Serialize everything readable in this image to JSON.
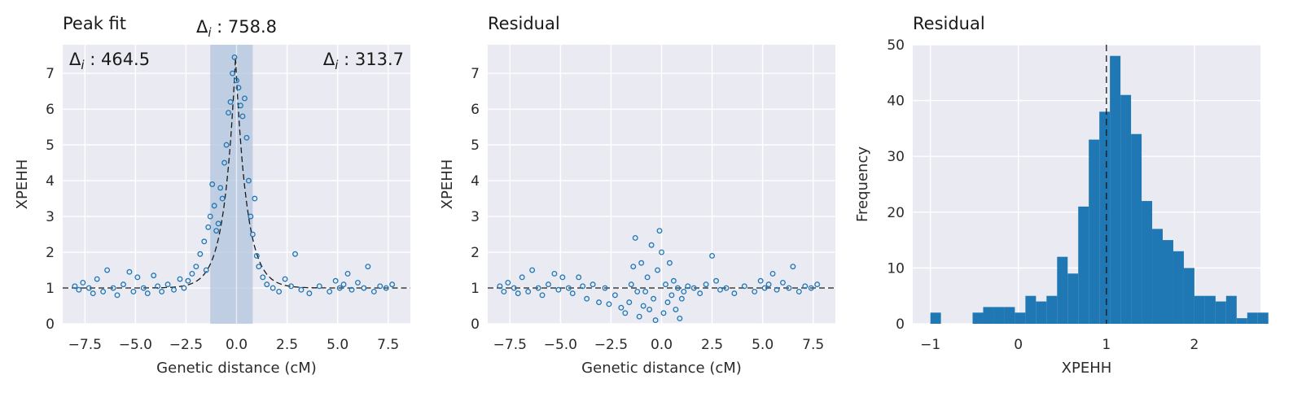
{
  "colors": {
    "background": "#eaeaf2",
    "grid": "#ffffff",
    "marker": "#1f77b4",
    "bar": "#1f77b4",
    "shade": "#b0c4de",
    "line": "#1a1a1a"
  },
  "panels": [
    {
      "title": "Peak fit",
      "xlabel": "Genetic distance (cM)",
      "ylabel": "XPEHH",
      "x_ticks": [
        "−7.5",
        "−5.0",
        "−2.5",
        "0.0",
        "2.5",
        "5.0",
        "7.5"
      ],
      "y_ticks": [
        "0",
        "1",
        "2",
        "3",
        "4",
        "5",
        "6",
        "7"
      ],
      "annotations": {
        "center": "Δ_i : 758.8",
        "left": "Δ_i : 464.5",
        "right": "Δ_i : 313.7"
      }
    },
    {
      "title": "Residual",
      "xlabel": "Genetic distance (cM)",
      "ylabel": "XPEHH",
      "x_ticks": [
        "−7.5",
        "−5.0",
        "−2.5",
        "0.0",
        "2.5",
        "5.0",
        "7.5"
      ],
      "y_ticks": [
        "0",
        "1",
        "2",
        "3",
        "4",
        "5",
        "6",
        "7"
      ]
    },
    {
      "title": "Residual",
      "xlabel": "XPEHH",
      "ylabel": "Frequency",
      "x_ticks": [
        "−1",
        "0",
        "1",
        "2"
      ],
      "y_ticks": [
        "0",
        "10",
        "20",
        "30",
        "40",
        "50"
      ]
    }
  ],
  "chart_data": [
    {
      "type": "scatter",
      "title": "Peak fit",
      "xlabel": "Genetic distance (cM)",
      "ylabel": "XPEHH",
      "xlim": [
        -8.6,
        8.6
      ],
      "ylim": [
        0,
        7.8
      ],
      "grid": true,
      "shaded_region": [
        -1.3,
        0.8
      ],
      "shaded_divider": 0.0,
      "fit_curve": {
        "style": "dashed",
        "peak_x": -0.05,
        "peak_y": 7.45,
        "baseline": 1.0,
        "width": 0.55
      },
      "series": {
        "x": [
          -8.0,
          -7.8,
          -7.6,
          -7.3,
          -7.1,
          -6.9,
          -6.6,
          -6.4,
          -6.1,
          -5.9,
          -5.6,
          -5.3,
          -5.1,
          -4.9,
          -4.6,
          -4.4,
          -4.1,
          -3.9,
          -3.7,
          -3.4,
          -3.1,
          -2.8,
          -2.6,
          -2.4,
          -2.2,
          -2.0,
          -1.8,
          -1.6,
          -1.5,
          -1.4,
          -1.3,
          -1.2,
          -1.1,
          -1.0,
          -0.9,
          -0.8,
          -0.7,
          -0.6,
          -0.5,
          -0.4,
          -0.3,
          -0.2,
          -0.1,
          0.0,
          0.1,
          0.2,
          0.3,
          0.4,
          0.5,
          0.6,
          0.7,
          0.8,
          0.9,
          1.0,
          1.1,
          1.3,
          1.5,
          1.8,
          2.1,
          2.4,
          2.7,
          2.9,
          3.2,
          3.6,
          4.1,
          4.6,
          4.9,
          5.1,
          5.3,
          5.5,
          5.7,
          6.0,
          6.3,
          6.5,
          6.8,
          7.1,
          7.4,
          7.7
        ],
        "y": [
          1.05,
          0.95,
          1.15,
          1.0,
          0.85,
          1.25,
          0.9,
          1.5,
          1.0,
          0.8,
          1.1,
          1.45,
          0.9,
          1.3,
          1.0,
          0.85,
          1.35,
          1.05,
          0.9,
          1.1,
          0.95,
          1.25,
          1.0,
          1.2,
          1.4,
          1.6,
          1.95,
          2.3,
          1.5,
          2.7,
          3.0,
          3.9,
          3.3,
          2.6,
          2.8,
          3.8,
          3.5,
          4.5,
          5.0,
          5.9,
          6.2,
          7.0,
          7.45,
          6.8,
          6.6,
          6.1,
          5.8,
          6.3,
          5.2,
          4.0,
          3.0,
          2.5,
          3.5,
          1.9,
          1.6,
          1.3,
          1.1,
          1.0,
          0.9,
          1.25,
          1.05,
          1.95,
          0.95,
          0.85,
          1.05,
          0.9,
          1.2,
          1.0,
          1.1,
          1.4,
          0.95,
          1.15,
          1.0,
          1.6,
          0.9,
          1.05,
          1.0,
          1.1
        ]
      }
    },
    {
      "type": "scatter",
      "title": "Residual",
      "xlabel": "Genetic distance (cM)",
      "ylabel": "XPEHH",
      "xlim": [
        -8.6,
        8.6
      ],
      "ylim": [
        0,
        7.8
      ],
      "grid": true,
      "reference_line": {
        "y": 1.0,
        "style": "dashed"
      },
      "series": {
        "x": [
          -8.0,
          -7.8,
          -7.6,
          -7.3,
          -7.1,
          -6.9,
          -6.6,
          -6.4,
          -6.1,
          -5.9,
          -5.6,
          -5.3,
          -5.1,
          -4.9,
          -4.6,
          -4.4,
          -4.1,
          -3.9,
          -3.7,
          -3.4,
          -3.1,
          -2.8,
          -2.6,
          -2.3,
          -2.0,
          -1.8,
          -1.6,
          -1.5,
          -1.4,
          -1.3,
          -1.2,
          -1.1,
          -1.0,
          -0.9,
          -0.8,
          -0.7,
          -0.6,
          -0.5,
          -0.4,
          -0.3,
          -0.2,
          -0.1,
          0.0,
          0.1,
          0.2,
          0.3,
          0.4,
          0.5,
          0.6,
          0.7,
          0.8,
          0.9,
          1.0,
          1.1,
          1.3,
          1.6,
          1.9,
          2.2,
          2.5,
          2.7,
          2.9,
          3.2,
          3.6,
          4.1,
          4.6,
          4.9,
          5.1,
          5.3,
          5.5,
          5.7,
          6.0,
          6.3,
          6.5,
          6.8,
          7.1,
          7.4,
          7.7
        ],
        "y": [
          1.05,
          0.9,
          1.15,
          1.0,
          0.85,
          1.3,
          0.9,
          1.5,
          1.0,
          0.8,
          1.1,
          1.4,
          0.95,
          1.3,
          1.0,
          0.85,
          1.3,
          1.05,
          0.7,
          1.1,
          0.6,
          1.0,
          0.55,
          0.8,
          0.45,
          0.3,
          0.6,
          1.1,
          1.6,
          2.4,
          0.9,
          0.2,
          1.7,
          0.5,
          0.9,
          1.3,
          0.4,
          2.2,
          0.7,
          0.1,
          1.5,
          2.6,
          2.0,
          0.3,
          1.1,
          0.6,
          1.7,
          0.8,
          1.2,
          0.4,
          1.0,
          0.15,
          0.7,
          0.9,
          1.05,
          1.0,
          0.85,
          1.1,
          1.9,
          1.2,
          0.95,
          1.0,
          0.85,
          1.05,
          0.9,
          1.2,
          1.0,
          1.1,
          1.4,
          0.95,
          1.15,
          1.0,
          1.6,
          0.9,
          1.05,
          1.0,
          1.1
        ]
      }
    },
    {
      "type": "bar",
      "title": "Residual",
      "xlabel": "XPEHH",
      "ylabel": "Frequency",
      "xlim": [
        -1.2,
        2.75
      ],
      "ylim": [
        0,
        50
      ],
      "grid": true,
      "reference_line": {
        "x": 1.0,
        "style": "dashed"
      },
      "bin_start": -1.0,
      "bin_width": 0.12,
      "counts": [
        2,
        0,
        0,
        0,
        2,
        3,
        3,
        3,
        2,
        5,
        4,
        5,
        12,
        9,
        21,
        33,
        38,
        48,
        41,
        34,
        22,
        17,
        15,
        13,
        10,
        5,
        5,
        4,
        5,
        1,
        2,
        2
      ]
    }
  ]
}
